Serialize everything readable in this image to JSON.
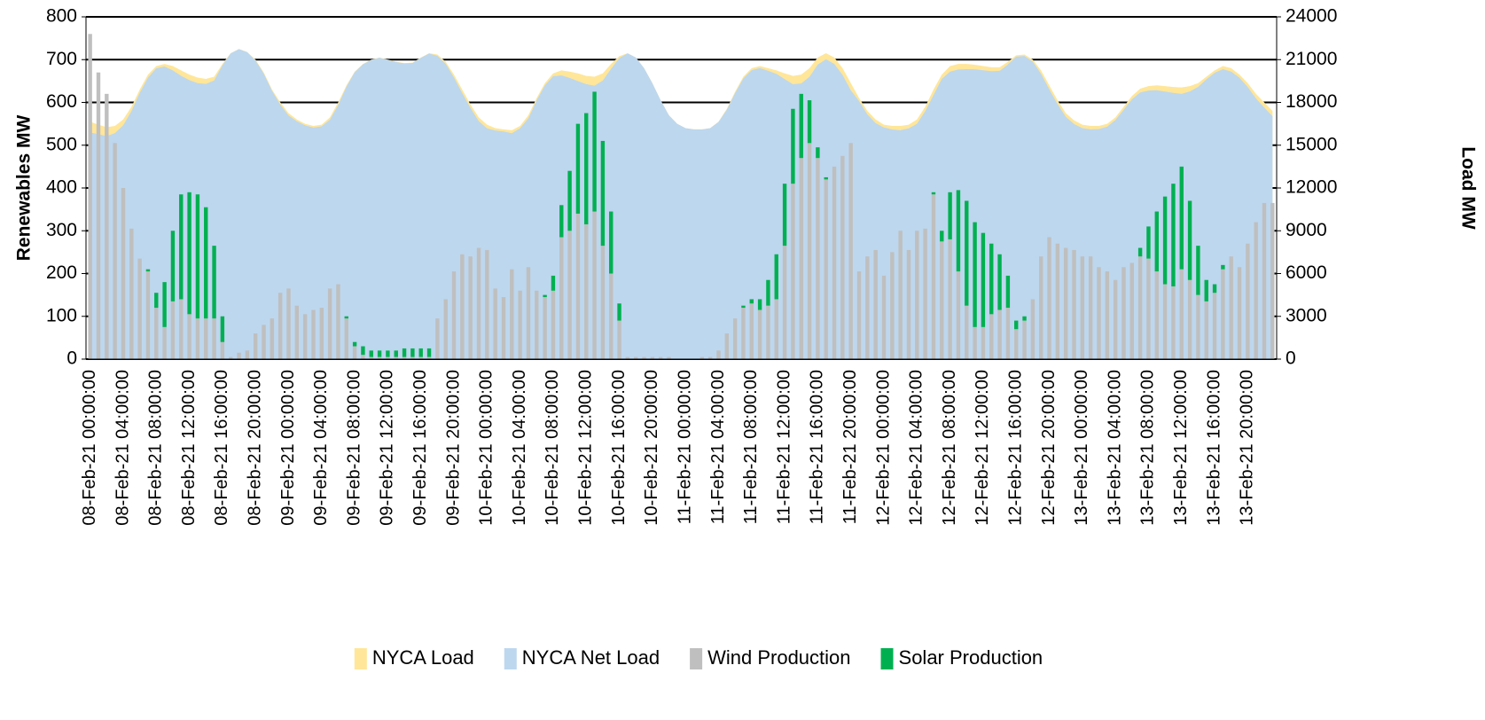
{
  "chart_data": {
    "type": "bar",
    "stacked": true,
    "y_label": "Renewables MW",
    "y2_label": "Load MW",
    "ylim": [
      0,
      800
    ],
    "yticks": [
      0,
      100,
      200,
      300,
      400,
      500,
      600,
      700,
      800
    ],
    "y2lim": [
      0,
      24000
    ],
    "y2ticks": [
      0,
      3000,
      6000,
      9000,
      12000,
      15000,
      18000,
      21000,
      24000
    ],
    "grid": true,
    "legend": "bottom",
    "categories": [
      "08-Feb-21 00:00:00",
      null,
      null,
      null,
      "08-Feb-21 04:00:00",
      null,
      null,
      null,
      "08-Feb-21 08:00:00",
      null,
      null,
      null,
      "08-Feb-21 12:00:00",
      null,
      null,
      null,
      "08-Feb-21 16:00:00",
      null,
      null,
      null,
      "08-Feb-21 20:00:00",
      null,
      null,
      null,
      "09-Feb-21 00:00:00",
      null,
      null,
      null,
      "09-Feb-21 04:00:00",
      null,
      null,
      null,
      "09-Feb-21 08:00:00",
      null,
      null,
      null,
      "09-Feb-21 12:00:00",
      null,
      null,
      null,
      "09-Feb-21 16:00:00",
      null,
      null,
      null,
      "09-Feb-21 20:00:00",
      null,
      null,
      null,
      "10-Feb-21 00:00:00",
      null,
      null,
      null,
      "10-Feb-21 04:00:00",
      null,
      null,
      null,
      "10-Feb-21 08:00:00",
      null,
      null,
      null,
      "10-Feb-21 12:00:00",
      null,
      null,
      null,
      "10-Feb-21 16:00:00",
      null,
      null,
      null,
      "10-Feb-21 20:00:00",
      null,
      null,
      null,
      "11-Feb-21 00:00:00",
      null,
      null,
      null,
      "11-Feb-21 04:00:00",
      null,
      null,
      null,
      "11-Feb-21 08:00:00",
      null,
      null,
      null,
      "11-Feb-21 12:00:00",
      null,
      null,
      null,
      "11-Feb-21 16:00:00",
      null,
      null,
      null,
      "11-Feb-21 20:00:00",
      null,
      null,
      null,
      "12-Feb-21 00:00:00",
      null,
      null,
      null,
      "12-Feb-21 04:00:00",
      null,
      null,
      null,
      "12-Feb-21 08:00:00",
      null,
      null,
      null,
      "12-Feb-21 12:00:00",
      null,
      null,
      null,
      "12-Feb-21 16:00:00",
      null,
      null,
      null,
      "12-Feb-21 20:00:00",
      null,
      null,
      null,
      "13-Feb-21 00:00:00",
      null,
      null,
      null,
      "13-Feb-21 04:00:00",
      null,
      null,
      null,
      "13-Feb-21 08:00:00",
      null,
      null,
      null,
      "13-Feb-21 12:00:00",
      null,
      null,
      null,
      "13-Feb-21 16:00:00",
      null,
      null,
      null,
      "13-Feb-21 20:00:00",
      null,
      null,
      null
    ],
    "series": [
      {
        "name": "NYCA Load",
        "type": "area",
        "axis": "y2",
        "color": "#ffe699",
        "values": [
          16650,
          16440,
          16260,
          16350,
          16800,
          17700,
          18900,
          19950,
          20550,
          20700,
          20550,
          20250,
          19950,
          19740,
          19650,
          19800,
          20700,
          21450,
          21750,
          21540,
          21000,
          20100,
          18900,
          18000,
          17250,
          16800,
          16500,
          16350,
          16440,
          16950,
          18000,
          19200,
          20160,
          20700,
          21000,
          21150,
          21000,
          20850,
          20760,
          20790,
          21150,
          21450,
          21360,
          20850,
          19950,
          18900,
          17850,
          16950,
          16440,
          16200,
          16110,
          16050,
          16350,
          17100,
          18300,
          19350,
          20040,
          20250,
          20160,
          20040,
          19860,
          19800,
          20040,
          20700,
          21240,
          21450,
          21150,
          20400,
          19350,
          18150,
          17100,
          16500,
          16200,
          16110,
          16110,
          16200,
          16650,
          17550,
          18750,
          19800,
          20400,
          20550,
          20400,
          20250,
          20040,
          19860,
          19950,
          20400,
          21150,
          21450,
          21150,
          20400,
          19350,
          18300,
          17400,
          16800,
          16440,
          16350,
          16350,
          16440,
          16800,
          17700,
          18900,
          19950,
          20550,
          20700,
          20700,
          20640,
          20550,
          20460,
          20460,
          20850,
          21300,
          21360,
          21000,
          20250,
          19200,
          18150,
          17250,
          16740,
          16440,
          16350,
          16350,
          16500,
          16950,
          17700,
          18450,
          18960,
          19140,
          19200,
          19140,
          19080,
          19050,
          19140,
          19350,
          19800,
          20250,
          20550,
          20400,
          19950,
          19350,
          18600,
          18000,
          17400
        ]
      },
      {
        "name": "NYCA Net Load",
        "type": "area",
        "axis": "y2",
        "color": "#bdd7ee",
        "values": [
          15890,
          15770,
          15640,
          15845,
          16400,
          17395,
          18665,
          19740,
          20395,
          20520,
          20250,
          19865,
          19560,
          19355,
          19295,
          19535,
          20600,
          21445,
          21735,
          21520,
          20940,
          20020,
          18805,
          17845,
          17085,
          16675,
          16395,
          16235,
          16320,
          16785,
          17825,
          19100,
          20120,
          20670,
          20980,
          21130,
          20980,
          20830,
          20735,
          20765,
          21125,
          21425,
          21265,
          20710,
          19745,
          18655,
          17610,
          16690,
          16185,
          16035,
          15965,
          15840,
          16190,
          16885,
          18140,
          19200,
          19845,
          19890,
          19720,
          19490,
          19285,
          19175,
          19530,
          20355,
          21110,
          21445,
          21145,
          20395,
          19345,
          18145,
          17095,
          16500,
          16200,
          16110,
          16105,
          16195,
          16630,
          17490,
          18655,
          19675,
          20260,
          20410,
          20215,
          20005,
          19630,
          19275,
          19330,
          19795,
          20655,
          21025,
          20700,
          19925,
          18845,
          18095,
          17160,
          16545,
          16245,
          16100,
          16050,
          16185,
          16500,
          17395,
          18510,
          19650,
          20160,
          20305,
          20330,
          20320,
          20255,
          20190,
          20215,
          20655,
          21210,
          21260,
          20860,
          20010,
          18915,
          17880,
          16990,
          16485,
          16200,
          16110,
          16135,
          16295,
          16765,
          17485,
          18225,
          18700,
          18830,
          18855,
          18760,
          18670,
          18600,
          18770,
          19085,
          19615,
          20075,
          20330,
          20160,
          19735,
          19080,
          18280,
          17635,
          17035
        ]
      },
      {
        "name": "Wind Production",
        "type": "bar",
        "color": "#bfbfbf",
        "values": [
          760,
          670,
          620,
          505,
          400,
          305,
          235,
          205,
          120,
          75,
          135,
          140,
          105,
          95,
          95,
          95,
          40,
          5,
          15,
          20,
          60,
          80,
          95,
          155,
          165,
          125,
          105,
          115,
          120,
          165,
          175,
          95,
          30,
          10,
          5,
          5,
          5,
          5,
          5,
          5,
          5,
          5,
          95,
          140,
          205,
          245,
          240,
          260,
          255,
          165,
          145,
          210,
          160,
          215,
          160,
          145,
          160,
          285,
          300,
          340,
          315,
          345,
          265,
          200,
          90,
          5,
          5,
          5,
          5,
          5,
          5,
          0,
          0,
          0,
          5,
          5,
          20,
          60,
          95,
          120,
          130,
          115,
          125,
          140,
          265,
          410,
          470,
          505,
          470,
          420,
          450,
          475,
          505,
          205,
          240,
          255,
          195,
          250,
          300,
          255,
          300,
          305,
          385,
          275,
          280,
          205,
          125,
          75,
          75,
          105,
          115,
          120,
          70,
          90,
          140,
          240,
          285,
          270,
          260,
          255,
          240,
          240,
          215,
          205,
          185,
          215,
          225,
          240,
          235,
          205,
          175,
          170,
          210,
          185,
          150,
          135,
          155,
          210,
          240,
          215,
          270,
          320,
          365,
          365
        ]
      },
      {
        "name": "Solar Production",
        "type": "bar",
        "color": "#00b050",
        "values": [
          0,
          0,
          0,
          0,
          0,
          0,
          0,
          5,
          35,
          105,
          165,
          245,
          285,
          290,
          260,
          170,
          60,
          0,
          0,
          0,
          0,
          0,
          0,
          0,
          0,
          0,
          0,
          0,
          0,
          0,
          0,
          5,
          10,
          20,
          15,
          15,
          15,
          15,
          20,
          20,
          20,
          20,
          0,
          0,
          0,
          0,
          0,
          0,
          0,
          0,
          0,
          0,
          0,
          0,
          0,
          5,
          35,
          75,
          140,
          210,
          260,
          280,
          245,
          145,
          40,
          0,
          0,
          0,
          0,
          0,
          0,
          0,
          0,
          0,
          0,
          0,
          0,
          0,
          0,
          5,
          10,
          25,
          60,
          105,
          145,
          175,
          150,
          100,
          25,
          5,
          0,
          0,
          0,
          0,
          0,
          0,
          0,
          0,
          0,
          0,
          0,
          0,
          5,
          25,
          110,
          190,
          245,
          245,
          220,
          165,
          130,
          75,
          20,
          10,
          0,
          0,
          0,
          0,
          0,
          0,
          0,
          0,
          0,
          0,
          0,
          0,
          0,
          20,
          75,
          140,
          205,
          240,
          240,
          185,
          115,
          50,
          20,
          10,
          0,
          0,
          0,
          0,
          0,
          0
        ]
      }
    ]
  }
}
